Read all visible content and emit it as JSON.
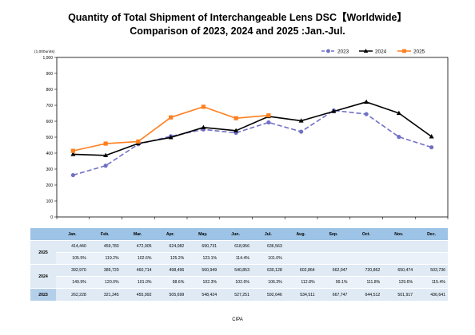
{
  "title_line1": "Quantity of Total Shipment of Interchangeable Lens DSC【Worldwide】",
  "title_line2": "Comparison of 2023, 2024 and 2025 :Jan.-Jul.",
  "source": "CIPA",
  "chart_data": {
    "type": "line",
    "unit_label": "(1,000units)",
    "categories": [
      "Jan.",
      "Feb.",
      "Mar.",
      "Apr.",
      "May.",
      "Jun.",
      "Jul.",
      "Aug.",
      "Sep.",
      "Oct.",
      "Nov.",
      "Dec."
    ],
    "ylim": [
      0,
      1000
    ],
    "yticks": [
      "0",
      "100",
      "200",
      "300",
      "400",
      "500",
      "600",
      "700",
      "800",
      "900",
      "1,000"
    ],
    "legend_position": "top-right",
    "grid": false,
    "series": [
      {
        "name": "2023",
        "color": "#7070c8",
        "dashed": true,
        "marker": "circle",
        "values": [
          262.228,
          321.345,
          455.992,
          505.699,
          548.424,
          527.251,
          592.646,
          534.511,
          667.747,
          644.512,
          501.917,
          436.641
        ]
      },
      {
        "name": "2024",
        "color": "#000000",
        "dashed": false,
        "marker": "triangle",
        "values": [
          392.97,
          385.72,
          460.714,
          498.496,
          560.949,
          540.853,
          630.128,
          602.864,
          662.047,
          720.862,
          650.474,
          503.736
        ]
      },
      {
        "name": "2025",
        "color": "#ff7f1e",
        "dashed": false,
        "marker": "square",
        "values": [
          414.44,
          459.783,
          472.905,
          624.082,
          690.731,
          618.956,
          636.563,
          null,
          null,
          null,
          null,
          null
        ]
      }
    ]
  },
  "table": {
    "header": [
      "Jan.",
      "Feb.",
      "Mar.",
      "Apr.",
      "May.",
      "Jun.",
      "Jul.",
      "Aug.",
      "Sep.",
      "Oct.",
      "Nov.",
      "Dec."
    ],
    "rows": [
      {
        "label": "2025",
        "values": [
          "414,440",
          "459,783",
          "472,905",
          "624,082",
          "690,731",
          "618,956",
          "636,563",
          "",
          "",
          "",
          "",
          ""
        ],
        "percents": [
          "105.5%",
          "119.2%",
          "102.6%",
          "125.2%",
          "123.1%",
          "114.4%",
          "101.0%",
          "",
          "",
          "",
          "",
          ""
        ]
      },
      {
        "label": "2024",
        "values": [
          "392,970",
          "385,720",
          "460,714",
          "498,496",
          "560,949",
          "540,853",
          "630,128",
          "602,864",
          "662,047",
          "720,862",
          "650,474",
          "503,736"
        ],
        "percents": [
          "149.9%",
          "120.0%",
          "101.0%",
          "98.6%",
          "102.3%",
          "102.6%",
          "106.3%",
          "112.8%",
          "99.1%",
          "111.8%",
          "129.6%",
          "115.4%"
        ]
      },
      {
        "label": "2023",
        "values": [
          "262,228",
          "321,345",
          "455,992",
          "505,699",
          "548,424",
          "527,251",
          "592,646",
          "534,511",
          "667,747",
          "644,512",
          "501,917",
          "436,641"
        ]
      }
    ]
  }
}
